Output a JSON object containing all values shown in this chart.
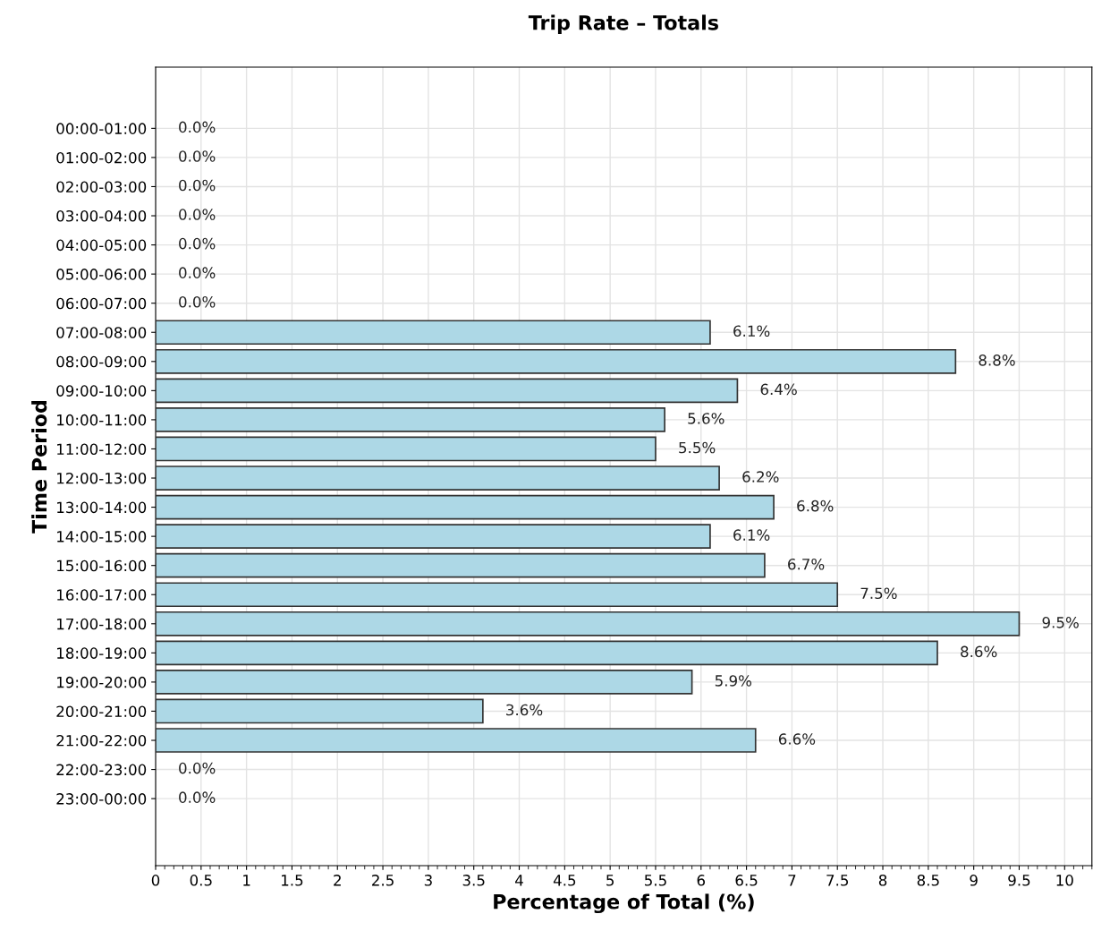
{
  "chart_data": {
    "type": "bar",
    "orientation": "horizontal",
    "title": "Trip Rate – Totals",
    "xlabel": "Percentage of Total (%)",
    "ylabel": "Time Period",
    "categories": [
      "00:00-01:00",
      "01:00-02:00",
      "02:00-03:00",
      "03:00-04:00",
      "04:00-05:00",
      "05:00-06:00",
      "06:00-07:00",
      "07:00-08:00",
      "08:00-09:00",
      "09:00-10:00",
      "10:00-11:00",
      "11:00-12:00",
      "12:00-13:00",
      "13:00-14:00",
      "14:00-15:00",
      "15:00-16:00",
      "16:00-17:00",
      "17:00-18:00",
      "18:00-19:00",
      "19:00-20:00",
      "20:00-21:00",
      "21:00-22:00",
      "22:00-23:00",
      "23:00-00:00"
    ],
    "values": [
      0,
      0,
      0,
      0,
      0,
      0,
      0,
      6.1,
      8.8,
      6.4,
      5.6,
      5.5,
      6.2,
      6.8,
      6.1,
      6.7,
      7.5,
      9.5,
      8.6,
      5.9,
      3.6,
      6.6,
      0,
      0
    ],
    "value_labels": [
      "0.0%",
      "0.0%",
      "0.0%",
      "0.0%",
      "0.0%",
      "0.0%",
      "0.0%",
      "6.1%",
      "8.8%",
      "6.4%",
      "5.6%",
      "5.5%",
      "6.2%",
      "6.8%",
      "6.1%",
      "6.7%",
      "7.5%",
      "9.5%",
      "8.6%",
      "5.9%",
      "3.6%",
      "6.6%",
      "0.0%",
      "0.0%"
    ],
    "color": "#add8e6",
    "xlim": [
      0,
      10.3
    ],
    "xticks": [
      0,
      0.5,
      1,
      1.5,
      2,
      2.5,
      3,
      3.5,
      4,
      4.5,
      5,
      5.5,
      6,
      6.5,
      7,
      7.5,
      8,
      8.5,
      9,
      9.5,
      10
    ],
    "grid": true
  }
}
